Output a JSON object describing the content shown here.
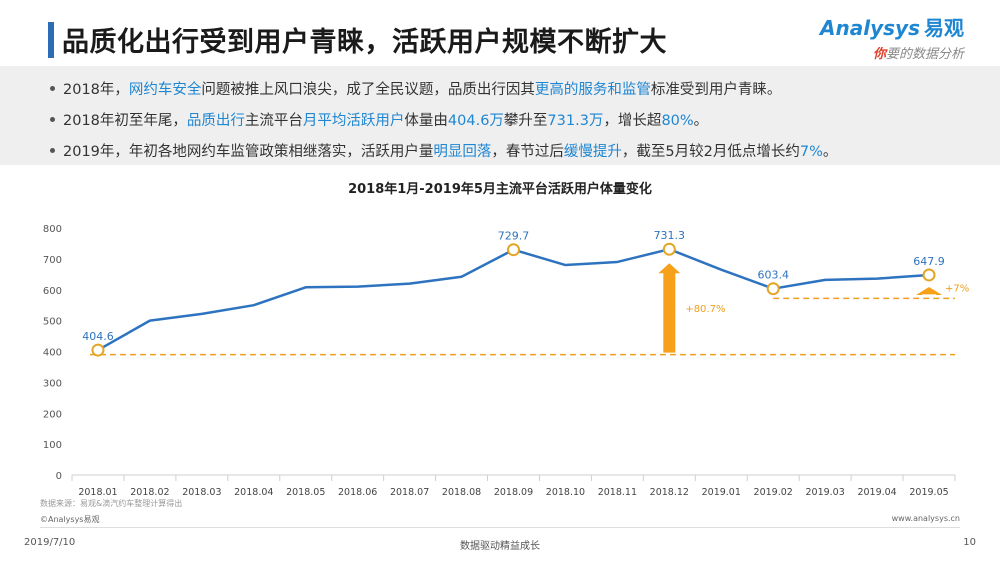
{
  "header": {
    "title": "品质化出行受到用户青睐，活跃用户规模不断扩大"
  },
  "logo": {
    "brand": "Analysys",
    "brand_cn": "易观",
    "slogan_first": "你",
    "slogan_rest": "要的数据分析"
  },
  "bullets": [
    {
      "parts": [
        "2018年，",
        "网约车安全",
        "问题被推上风口浪尖，成了全民议题，品质出行因其",
        "更高的服务和监管",
        "标准受到用户青睐。"
      ]
    },
    {
      "parts": [
        "2018年初至年尾，",
        "品质出行",
        "主流平台",
        "月平均活跃用户",
        "体量由",
        "404.6万",
        "攀升至",
        "731.3万",
        "，增长超",
        "80%",
        "。"
      ]
    },
    {
      "parts": [
        "2019年，年初各地网约车监管政策相继落实，活跃用户量",
        "明显回落",
        "，春节过后",
        "缓慢提升",
        "，截至5月较2月低点增长约",
        "7%",
        "。"
      ]
    }
  ],
  "chart_data": {
    "type": "line",
    "title": "2018年1月-2019年5月主流平台活跃用户体量变化",
    "categories": [
      "2018.01",
      "2018.02",
      "2018.03",
      "2018.04",
      "2018.05",
      "2018.06",
      "2018.07",
      "2018.08",
      "2018.09",
      "2018.10",
      "2018.11",
      "2018.12",
      "2019.01",
      "2019.02",
      "2019.03",
      "2019.04",
      "2019.05"
    ],
    "series": [
      {
        "values": [
          404.6,
          500,
          522,
          550,
          608,
          610,
          620,
          642,
          729.7,
          680,
          690,
          731.3,
          665,
          603.4,
          632,
          636,
          647.9
        ]
      }
    ],
    "ylim": [
      0,
      800
    ],
    "yticks": [
      0,
      100,
      200,
      300,
      400,
      500,
      600,
      700,
      800
    ],
    "labeled_points": [
      {
        "index": 0,
        "label": "404.6"
      },
      {
        "index": 8,
        "label": "729.7"
      },
      {
        "index": 11,
        "label": "731.3"
      },
      {
        "index": 13,
        "label": "603.4"
      },
      {
        "index": 16,
        "label": "647.9"
      }
    ],
    "reference_lines": [
      {
        "value": 390,
        "from_index": 0,
        "to_index": 16
      },
      {
        "value": 572,
        "from_index": 13,
        "to_index": 16
      }
    ],
    "annotations": [
      {
        "index": 11,
        "label": "+80.7%"
      },
      {
        "index": 16,
        "label": "+7%"
      }
    ],
    "colors": {
      "line": "#2e73bf",
      "reference": "#f0a020",
      "arrow": "#f7a11a",
      "point_ring": "#e3a524",
      "point_label": "#2e73bf",
      "annotation": "#f0a020"
    }
  },
  "footer": {
    "source": "数据来源：易观&滴汽约车整理计算得出",
    "copyright": "©Analysys易观",
    "website": "www.analysys.cn",
    "date": "2019/7/10",
    "center": "数据驱动精益成长",
    "page": "10"
  }
}
